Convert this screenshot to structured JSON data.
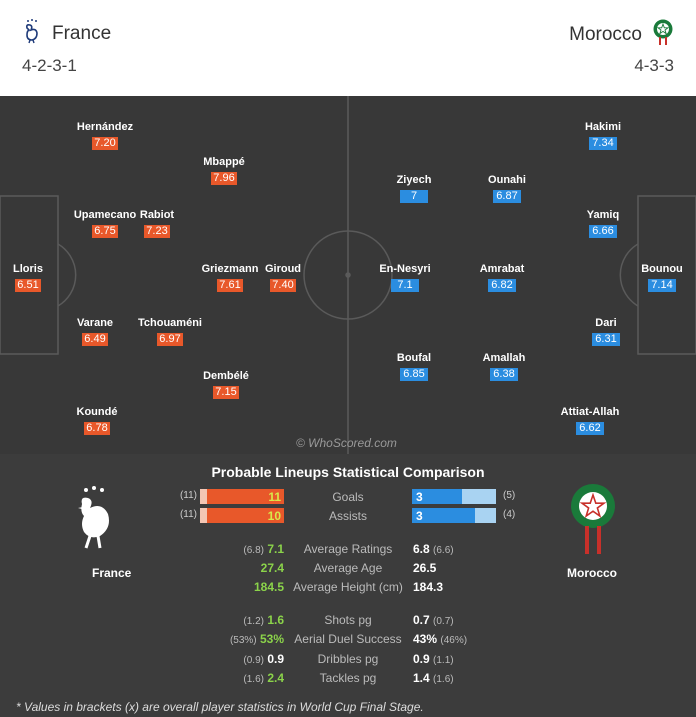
{
  "header": {
    "home": {
      "name": "France",
      "formation": "4-2-3-1"
    },
    "away": {
      "name": "Morocco",
      "formation": "4-3-3"
    }
  },
  "pitch": {
    "watermark": "© WhoScored.com",
    "home_players": [
      {
        "name": "Hernández",
        "rating": "7.20"
      },
      {
        "name": "Mbappé",
        "rating": "7.96"
      },
      {
        "name": "Upamecano",
        "rating": "6.75"
      },
      {
        "name": "Rabiot",
        "rating": "7.23"
      },
      {
        "name": "Lloris",
        "rating": "6.51"
      },
      {
        "name": "Griezmann",
        "rating": "7.61"
      },
      {
        "name": "Giroud",
        "rating": "7.40"
      },
      {
        "name": "Varane",
        "rating": "6.49"
      },
      {
        "name": "Tchouaméni",
        "rating": "6.97"
      },
      {
        "name": "Dembélé",
        "rating": "7.15"
      },
      {
        "name": "Koundé",
        "rating": "6.78"
      }
    ],
    "away_players": [
      {
        "name": "Hakimi",
        "rating": "7.34"
      },
      {
        "name": "Ziyech",
        "rating": "7"
      },
      {
        "name": "Ounahi",
        "rating": "6.87"
      },
      {
        "name": "Yamiq",
        "rating": "6.66"
      },
      {
        "name": "En-Nesyri",
        "rating": "7.1"
      },
      {
        "name": "Amrabat",
        "rating": "6.82"
      },
      {
        "name": "Bounou",
        "rating": "7.14"
      },
      {
        "name": "Dari",
        "rating": "6.31"
      },
      {
        "name": "Boufal",
        "rating": "6.85"
      },
      {
        "name": "Amallah",
        "rating": "6.38"
      },
      {
        "name": "Attiat-Allah",
        "rating": "6.62"
      }
    ]
  },
  "comparison": {
    "title": "Probable Lineups Statistical Comparison",
    "home_name": "France",
    "away_name": "Morocco",
    "bars": [
      {
        "label": "Goals",
        "home": "11",
        "home_overall": "(11)",
        "away": "3",
        "away_overall": "(5)",
        "home_fill": 0.92,
        "away_fill": 0.6
      },
      {
        "label": "Assists",
        "home": "10",
        "home_overall": "(11)",
        "away": "3",
        "away_overall": "(4)",
        "home_fill": 0.92,
        "away_fill": 0.75
      }
    ],
    "group1": [
      {
        "label": "Average Ratings",
        "home_overall": "(6.8)",
        "home": "7.1",
        "away": "6.8",
        "away_overall": "(6.6)",
        "home_better": true
      },
      {
        "label": "Average Age",
        "home_overall": "",
        "home": "27.4",
        "away": "26.5",
        "away_overall": "",
        "home_better": true
      },
      {
        "label": "Average Height (cm)",
        "home_overall": "",
        "home": "184.5",
        "away": "184.3",
        "away_overall": "",
        "home_better": true
      }
    ],
    "group2": [
      {
        "label": "Shots pg",
        "home_overall": "(1.2)",
        "home": "1.6",
        "away": "0.7",
        "away_overall": "(0.7)",
        "home_better": true
      },
      {
        "label": "Aerial Duel Success",
        "home_overall": "(53%)",
        "home": "53%",
        "away": "43%",
        "away_overall": "(46%)",
        "home_better": true
      },
      {
        "label": "Dribbles pg",
        "home_overall": "(0.9)",
        "home": "0.9",
        "away": "0.9",
        "away_overall": "(1.1)",
        "home_better": false
      },
      {
        "label": "Tackles pg",
        "home_overall": "(1.6)",
        "home": "2.4",
        "away": "1.4",
        "away_overall": "(1.6)",
        "home_better": true
      }
    ],
    "footnote": "* Values in brackets (x) are overall player statistics in World Cup Final Stage."
  },
  "colors": {
    "home": "#e8582a",
    "away": "#2b8de0",
    "better": "#8bd34a"
  }
}
